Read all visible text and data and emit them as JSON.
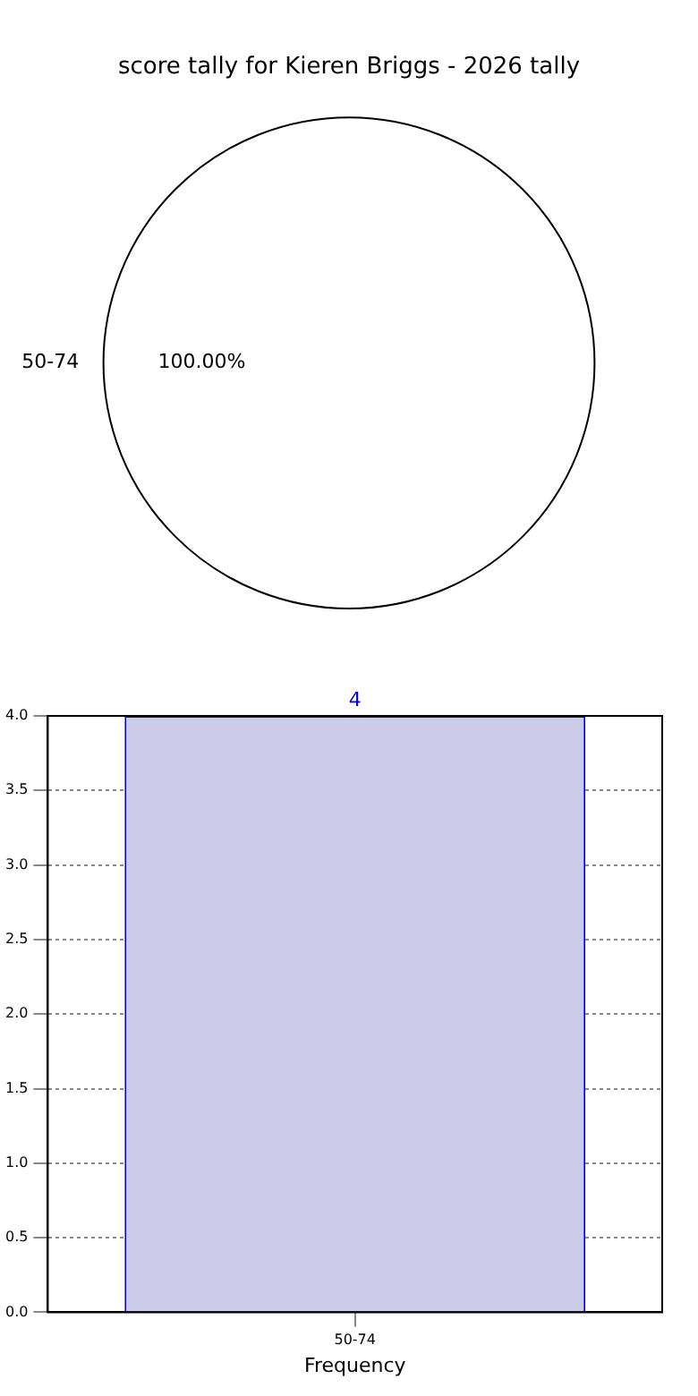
{
  "chart_data": [
    {
      "type": "pie",
      "title": "score tally for Kieren Briggs - 2026 tally",
      "categories": [
        "50-74"
      ],
      "values": [
        100
      ],
      "colors": [
        "#ffffff"
      ],
      "value_labels": [
        "100.00%"
      ]
    },
    {
      "type": "bar",
      "categories": [
        "50-74"
      ],
      "values": [
        4
      ],
      "color": "#ccccea",
      "ylim": [
        0,
        4
      ],
      "yticks": [
        {
          "value": 0,
          "label": "0.0"
        },
        {
          "value": 0.5,
          "label": "0.5"
        },
        {
          "value": 1,
          "label": "1.0"
        },
        {
          "value": 1.5,
          "label": "1.5"
        },
        {
          "value": 2,
          "label": "2.0"
        },
        {
          "value": 2.5,
          "label": "2.5"
        },
        {
          "value": 3,
          "label": "3.0"
        },
        {
          "value": 3.5,
          "label": "3.5"
        },
        {
          "value": 4,
          "label": "4.0"
        }
      ],
      "xlabel": "Frequency",
      "grid": true,
      "data_labels": true
    }
  ]
}
